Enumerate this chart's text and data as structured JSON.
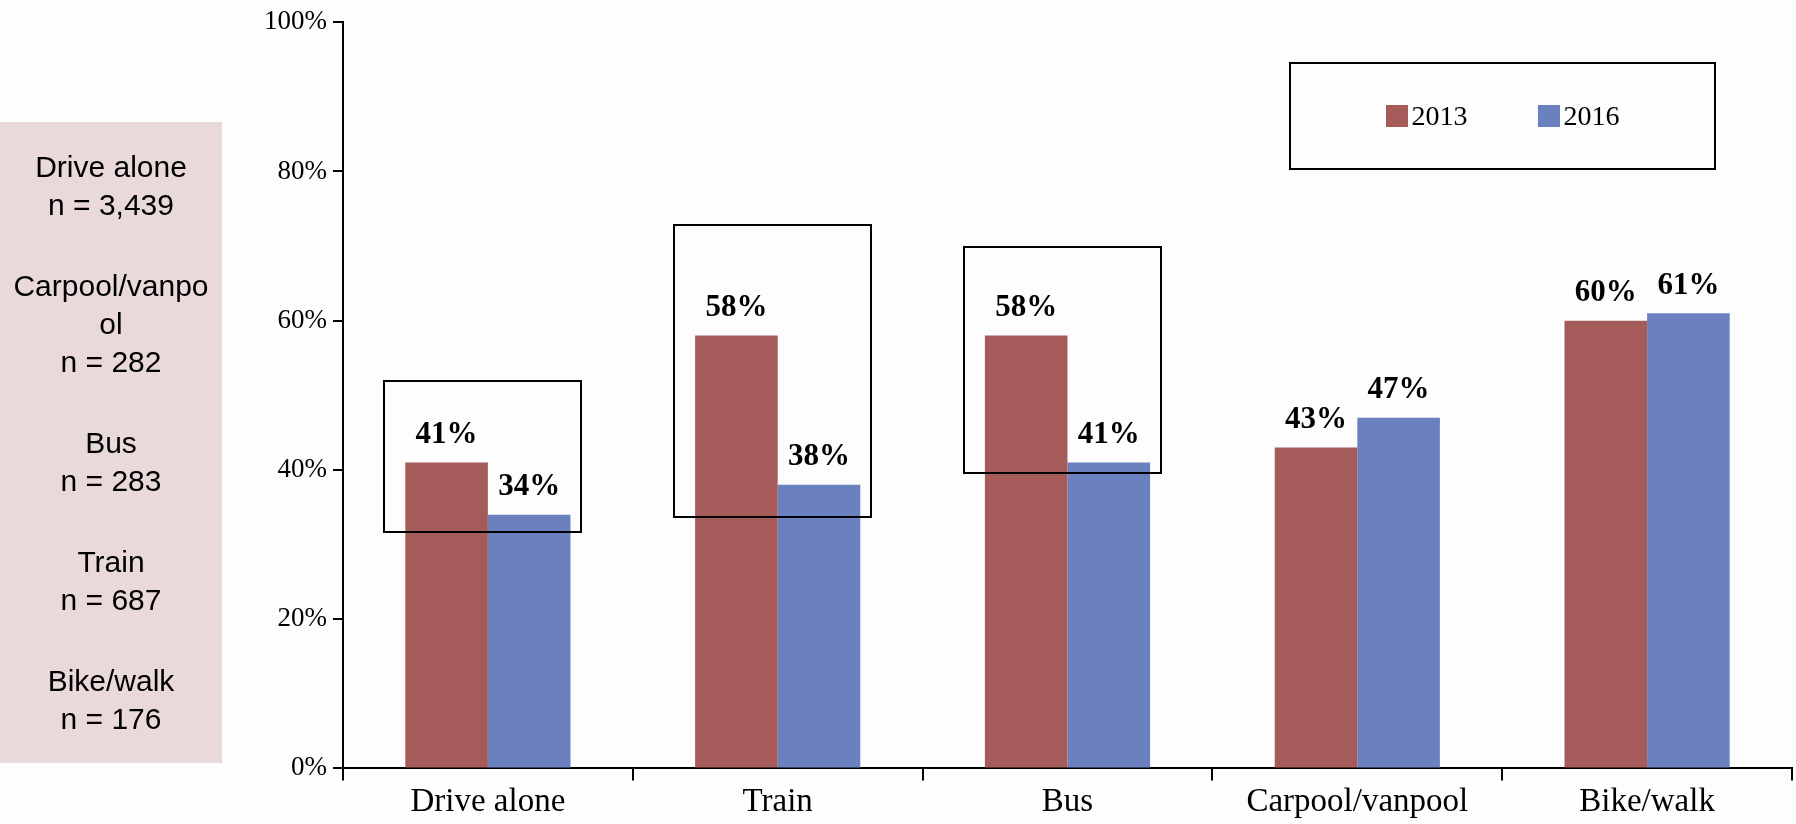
{
  "chart_data": {
    "type": "bar",
    "categories": [
      "Drive alone",
      "Train",
      "Bus",
      "Carpool/vanpool",
      "Bike/walk"
    ],
    "series": [
      {
        "name": "2013",
        "color": "#a65b5b",
        "values": [
          41,
          58,
          58,
          43,
          60
        ]
      },
      {
        "name": "2016",
        "color": "#6b80bf",
        "values": [
          34,
          38,
          41,
          47,
          61
        ]
      }
    ],
    "ylim": [
      0,
      100
    ],
    "yticks": [
      {
        "value": 0,
        "label": "0%"
      },
      {
        "value": 20,
        "label": "20%"
      },
      {
        "value": 40,
        "label": "40%"
      },
      {
        "value": 60,
        "label": "60%"
      },
      {
        "value": 80,
        "label": "80%"
      },
      {
        "value": 100,
        "label": "100%"
      }
    ],
    "value_labels": [
      [
        "41%",
        "58%",
        "58%",
        "43%",
        "60%"
      ],
      [
        "34%",
        "38%",
        "41%",
        "47%",
        "61%"
      ]
    ],
    "legend": "top right",
    "annotations": [
      "Drive alone\nn = 3,439",
      "Carpool/vanpool\nn = 282",
      "Bus\nn = 283",
      "Train\nn = 687",
      "Bike/walk\nn = 176"
    ]
  }
}
